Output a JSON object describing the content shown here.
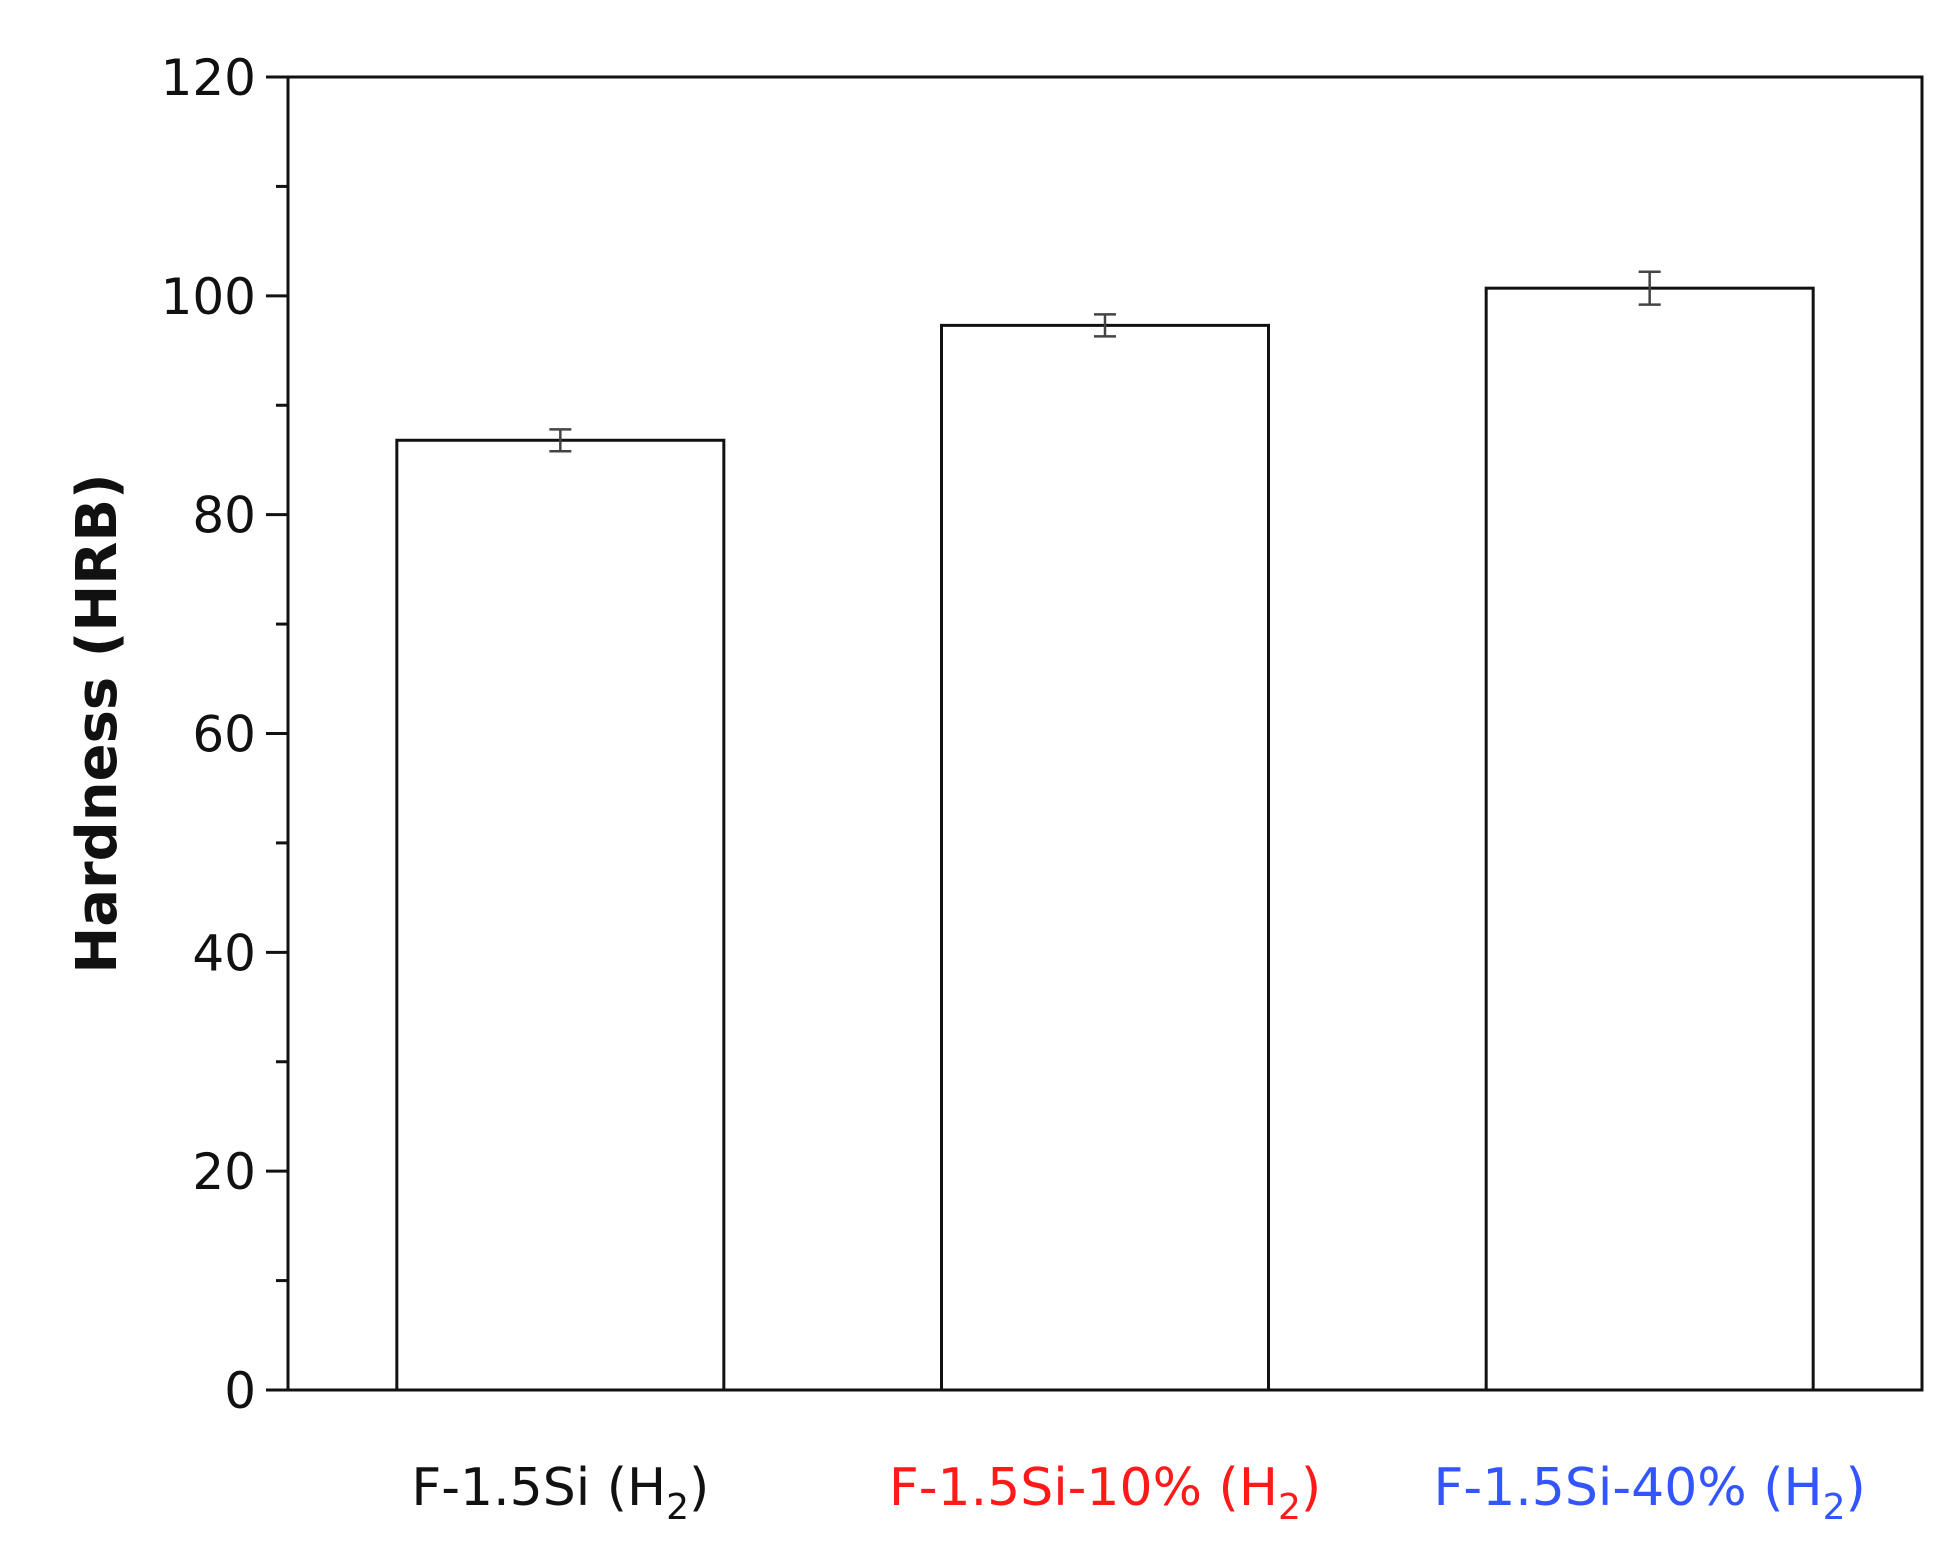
{
  "chart_data": {
    "type": "bar",
    "ylabel": "Hardness (HRB)",
    "xlabel": "",
    "ylim": [
      0,
      120
    ],
    "yticks": [
      0,
      20,
      40,
      60,
      80,
      100,
      120
    ],
    "yticks_minor_step": 10,
    "grid": false,
    "categories": [
      {
        "base": "F-1.5Si",
        "suffix": " (H",
        "sub": "2",
        "close": ")",
        "color": "#111111"
      },
      {
        "base": "F-1.5Si-10%",
        "suffix": " (H",
        "sub": "2",
        "close": ")",
        "color": "#ff1a1a"
      },
      {
        "base": "F-1.5Si-40%",
        "suffix": " (H",
        "sub": "2",
        "close": ")",
        "color": "#3355ff"
      }
    ],
    "values": [
      86.8,
      97.3,
      100.7
    ],
    "errors": [
      1.0,
      1.0,
      1.5
    ],
    "bar_fill": "#ffffff",
    "bar_stroke": "#111111",
    "error_color": "#444444"
  }
}
